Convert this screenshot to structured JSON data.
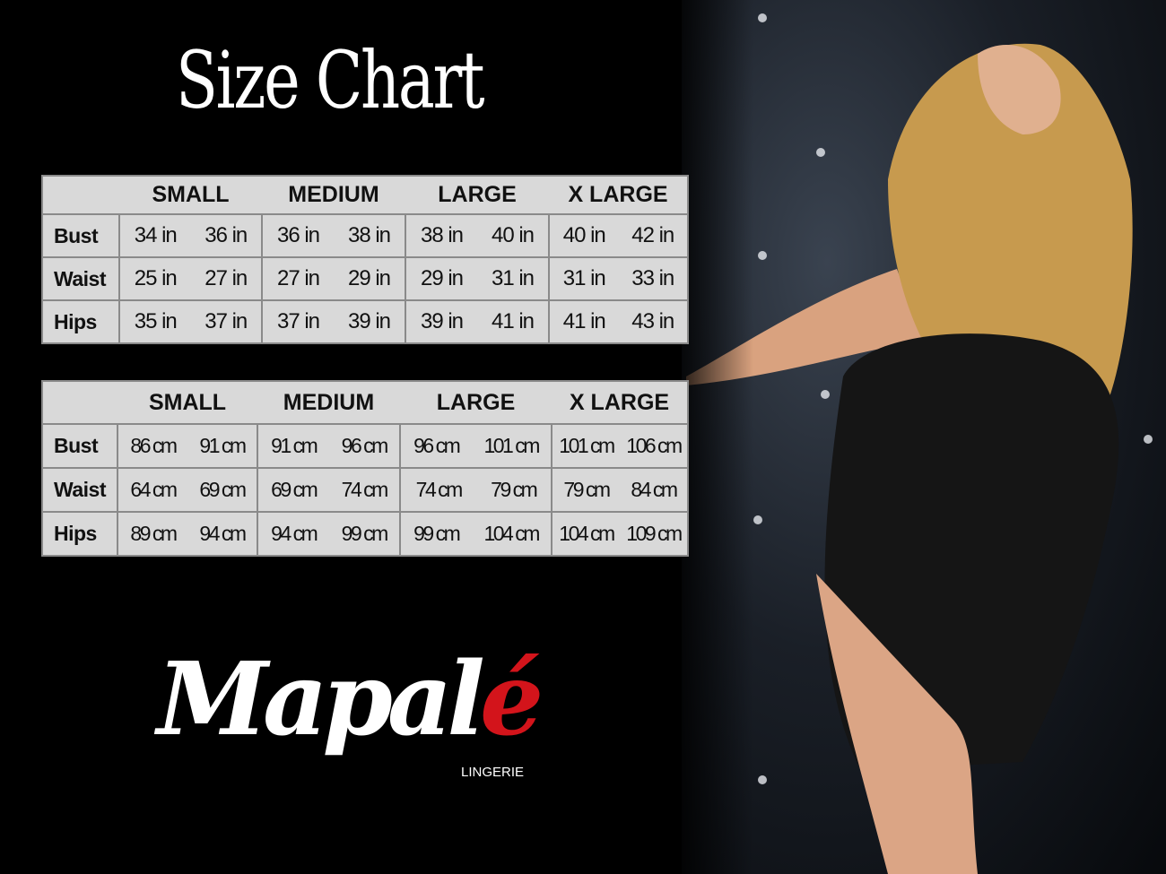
{
  "title": "Size Chart",
  "sizes": [
    "SMALL",
    "MEDIUM",
    "LARGE",
    "X LARGE"
  ],
  "inches_table": {
    "rows": [
      {
        "label": "Bust",
        "values": [
          [
            "34 in",
            "36 in"
          ],
          [
            "36 in",
            "38 in"
          ],
          [
            "38 in",
            "40 in"
          ],
          [
            "40 in",
            "42 in"
          ]
        ]
      },
      {
        "label": "Waist",
        "values": [
          [
            "25 in",
            "27 in"
          ],
          [
            "27 in",
            "29 in"
          ],
          [
            "29 in",
            "31 in"
          ],
          [
            "31 in",
            "33 in"
          ]
        ]
      },
      {
        "label": "Hips",
        "values": [
          [
            "35 in",
            "37 in"
          ],
          [
            "37 in",
            "39 in"
          ],
          [
            "39 in",
            "41 in"
          ],
          [
            "41 in",
            "43 in"
          ]
        ]
      }
    ]
  },
  "cm_table": {
    "rows": [
      {
        "label": "Bust",
        "values": [
          [
            "86 cm",
            "91 cm"
          ],
          [
            "91 cm",
            "96 cm"
          ],
          [
            "96 cm",
            "101 cm"
          ],
          [
            "101 cm",
            "106 cm"
          ]
        ]
      },
      {
        "label": "Waist",
        "values": [
          [
            "64 cm",
            "69 cm"
          ],
          [
            "69 cm",
            "74 cm"
          ],
          [
            "74 cm",
            "79  cm"
          ],
          [
            "79 cm",
            "84 cm"
          ]
        ]
      },
      {
        "label": "Hips",
        "values": [
          [
            "89 cm",
            "94 cm"
          ],
          [
            "94 cm",
            "99 cm"
          ],
          [
            "99 cm",
            "104 cm"
          ],
          [
            "104 cm",
            "109 cm"
          ]
        ]
      }
    ]
  },
  "logo": {
    "main": "Mapal",
    "accent": "é",
    "sub": "LINGERIE",
    "accent_color": "#d3141b"
  }
}
